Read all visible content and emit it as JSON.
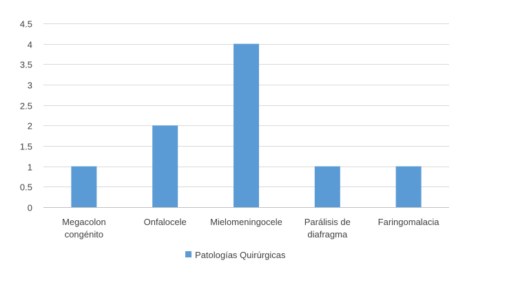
{
  "chart_data": {
    "type": "bar",
    "title": "",
    "xlabel": "",
    "ylabel": "",
    "categories": [
      "Megacolon congénito",
      "Onfalocele",
      "Mielomeningocele",
      "Parálisis de diafragma",
      "Faringomalacia"
    ],
    "series": [
      {
        "name": "Patologías Quirúrgicas",
        "values": [
          1,
          2,
          4,
          1,
          1
        ],
        "color": "#5B9BD5"
      }
    ],
    "ylim": [
      0,
      4.5
    ],
    "yticks": [
      "0",
      "0.5",
      "1",
      "1.5",
      "2",
      "2.5",
      "3",
      "3.5",
      "4",
      "4.5"
    ],
    "grid": true,
    "legend_position": "bottom"
  }
}
